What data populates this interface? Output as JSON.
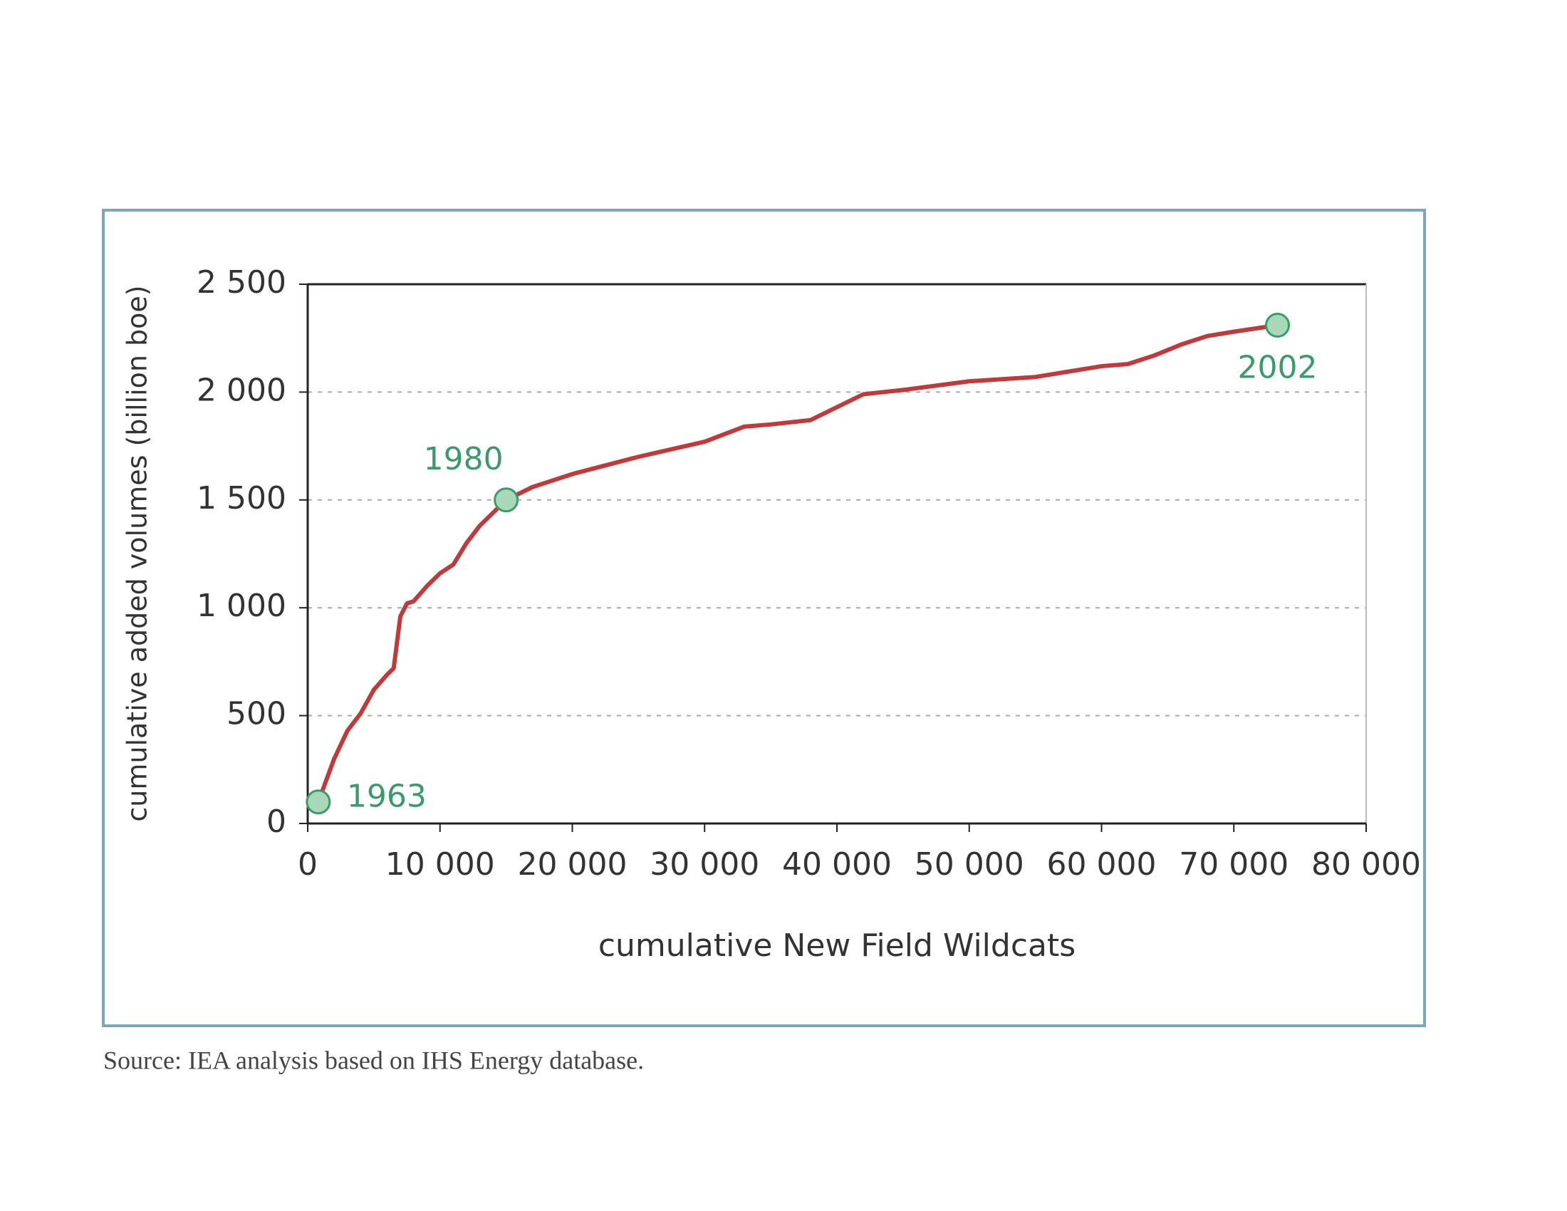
{
  "chart_data": {
    "type": "line",
    "x_label": "cumulative New Field Wildcats",
    "y_label": "cumulative added volumes (billion boe)",
    "source": "Source: IEA analysis based on IHS Energy database.",
    "x": [
      800,
      2000,
      3000,
      4000,
      5000,
      6000,
      6500,
      7000,
      7500,
      8000,
      9000,
      10000,
      11000,
      12000,
      13000,
      14000,
      15000,
      17000,
      20000,
      25000,
      30000,
      33000,
      35000,
      38000,
      40000,
      42000,
      45000,
      50000,
      55000,
      60000,
      62000,
      64000,
      66000,
      68000,
      70000,
      73300
    ],
    "series": [
      {
        "color": "#c0393b",
        "values": [
          100,
          300,
          430,
          510,
          620,
          690,
          720,
          960,
          1020,
          1030,
          1100,
          1160,
          1200,
          1300,
          1380,
          1440,
          1500,
          1560,
          1620,
          1700,
          1770,
          1840,
          1850,
          1870,
          1930,
          1990,
          2010,
          2050,
          2070,
          2120,
          2130,
          2170,
          2220,
          2260,
          2280,
          2310
        ]
      }
    ],
    "annotations": [
      {
        "text": "1963",
        "x": 800,
        "y": 100
      },
      {
        "text": "1980",
        "x": 15000,
        "y": 1500
      },
      {
        "text": "2002",
        "x": 73300,
        "y": 2310
      }
    ],
    "annotation_color": "#3a9a6a",
    "xlim": [
      0,
      80000
    ],
    "ylim": [
      0,
      2500
    ],
    "xticks": [
      0,
      {
        "value": 10000,
        "label": "10 000"
      },
      {
        "value": 20000,
        "label": "20 000"
      },
      {
        "value": 30000,
        "label": "30 000"
      },
      {
        "value": 40000,
        "label": "40 000"
      },
      {
        "value": 50000,
        "label": "50 000"
      },
      {
        "value": 60000,
        "label": "60 000"
      },
      {
        "value": 70000,
        "label": "70 000"
      },
      {
        "value": 80000,
        "label": "80 000"
      }
    ],
    "yticks": [
      0,
      500,
      {
        "value": 1000,
        "label": "1 000"
      },
      {
        "value": 1500,
        "label": "1 500"
      },
      {
        "value": 2000,
        "label": "2 000"
      },
      {
        "value": 2500,
        "label": "2 500"
      }
    ],
    "grid": true
  }
}
